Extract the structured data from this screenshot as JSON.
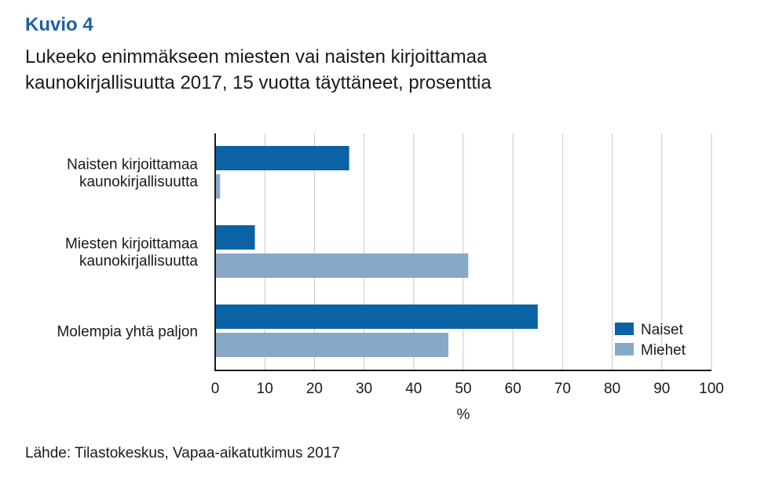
{
  "header": {
    "kuvio": "Kuvio 4",
    "title_line1": "Lukeeko enimmäkseen miesten vai naisten kirjoittamaa",
    "title_line2": "kaunokirjallisuutta 2017, 15 vuotta täyttäneet, prosenttia"
  },
  "source": "Lähde: Tilastokeskus, Vapaa-aikatutkimus 2017",
  "colors": {
    "naiset": "#0b62a4",
    "miehet": "#87a9c8",
    "grid": "#c8c8c8",
    "axis": "#1a1a1a"
  },
  "chart_data": {
    "type": "bar",
    "orientation": "horizontal",
    "title": "Lukeeko enimmäkseen miesten vai naisten kirjoittamaa kaunokirjallisuutta 2017, 15 vuotta täyttäneet, prosenttia",
    "categories": [
      [
        "Naisten kirjoittamaa",
        "kaunokirjallisuutta"
      ],
      [
        "Miesten kirjoittamaa",
        "kaunokirjallisuutta"
      ],
      [
        "Molempia yhtä paljon"
      ]
    ],
    "series": [
      {
        "name": "Naiset",
        "values": [
          27,
          8,
          65
        ]
      },
      {
        "name": "Miehet",
        "values": [
          1,
          51,
          47
        ]
      }
    ],
    "xlabel": "%",
    "ylabel": "",
    "xlim": [
      0,
      100
    ],
    "xticks": [
      "0",
      "10",
      "20",
      "30",
      "40",
      "50",
      "60",
      "70",
      "80",
      "90",
      "100"
    ],
    "grid": true,
    "legend": "bottom-right"
  }
}
